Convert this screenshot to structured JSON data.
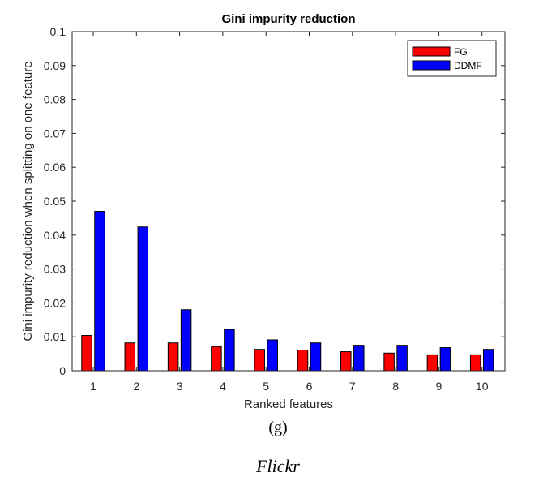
{
  "chart_data": {
    "type": "bar",
    "title": "Gini impurity reduction",
    "xlabel": "Ranked features",
    "ylabel": "Gini impurity reduction when splitting on one feature",
    "categories": [
      "1",
      "2",
      "3",
      "4",
      "5",
      "6",
      "7",
      "8",
      "9",
      "10"
    ],
    "series": [
      {
        "name": "FG",
        "color": "#ff0000",
        "values": [
          0.0104,
          0.0082,
          0.0082,
          0.0071,
          0.0063,
          0.0061,
          0.0056,
          0.0052,
          0.0047,
          0.0047
        ]
      },
      {
        "name": "DDMF",
        "color": "#0000ff",
        "values": [
          0.047,
          0.0424,
          0.018,
          0.0122,
          0.0091,
          0.0082,
          0.0075,
          0.0075,
          0.0068,
          0.0063
        ]
      }
    ],
    "ylim": [
      0,
      0.1
    ],
    "yticks": [
      "0",
      "0.01",
      "0.02",
      "0.03",
      "0.04",
      "0.05",
      "0.06",
      "0.07",
      "0.08",
      "0.09",
      "0.1"
    ],
    "legend_position": "top-right",
    "grid": false
  },
  "captions": {
    "panel": "(g)",
    "dataset": "Flickr"
  }
}
